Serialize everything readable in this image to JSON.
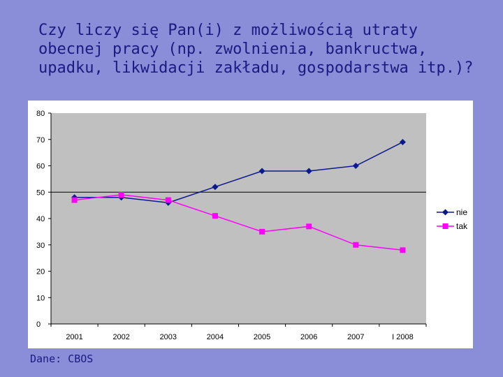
{
  "title": "Czy liczy się Pan(i) z możliwością utraty obecnej pracy (np. zwolnienia, bankructwa, upadku, likwidacji zakładu, gospodarstwa itp.)?",
  "source": "Dane: CBOS",
  "colors": {
    "background": "#8a8ed9",
    "plot_area": "#c0c0c0",
    "nie": "#0a1a8c",
    "tak": "#ff00ff"
  },
  "chart_data": {
    "type": "line",
    "categories": [
      "2001",
      "2002",
      "2003",
      "2004",
      "2005",
      "2006",
      "2007",
      "I 2008"
    ],
    "series": [
      {
        "name": "nie",
        "values": [
          48,
          48,
          46,
          52,
          58,
          58,
          60,
          69
        ],
        "marker": "diamond",
        "color": "#0a1a8c"
      },
      {
        "name": "tak",
        "values": [
          47,
          49,
          47,
          41,
          35,
          37,
          30,
          28
        ],
        "marker": "square",
        "color": "#ff00ff"
      }
    ],
    "yticks": [
      0,
      10,
      20,
      30,
      40,
      50,
      60,
      70,
      80
    ],
    "ylim": [
      0,
      80
    ],
    "reference_line": 50,
    "grid": false,
    "legend_position": "right"
  }
}
